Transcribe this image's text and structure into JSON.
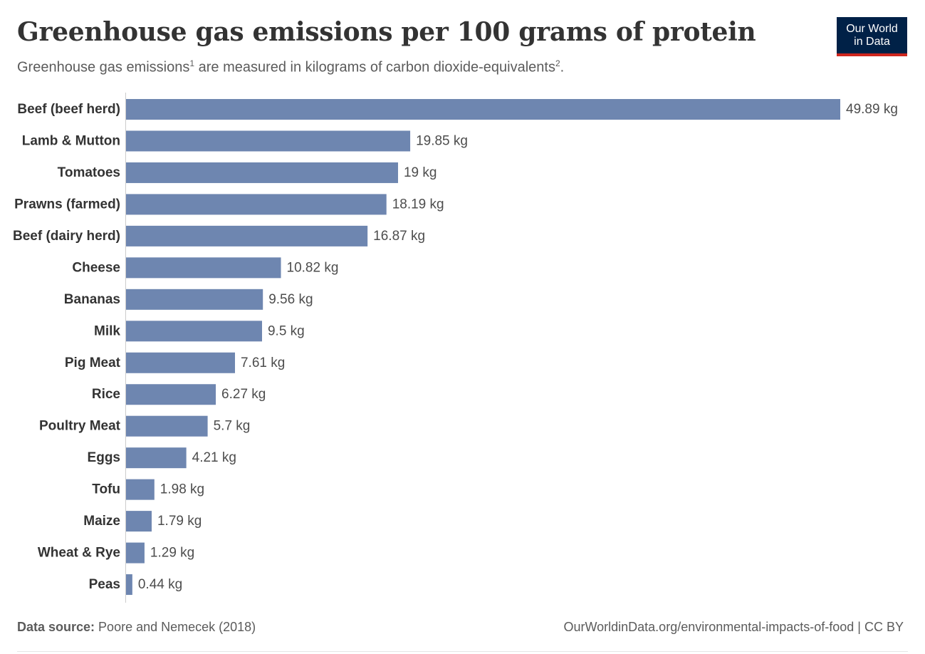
{
  "header": {
    "title": "Greenhouse gas emissions per 100 grams of protein",
    "subtitle_part1": "Greenhouse gas emissions",
    "subtitle_sup1": "1",
    "subtitle_part2": " are measured in kilograms of carbon dioxide-equivalents",
    "subtitle_sup2": "2",
    "subtitle_part3": "."
  },
  "logo": {
    "line1": "Our World",
    "line2": "in Data"
  },
  "footer": {
    "source_label": "Data source:",
    "source_text": " Poore and Nemecek (2018)",
    "url_license": "OurWorldinData.org/environmental-impacts-of-food | CC BY"
  },
  "colors": {
    "bar": "#6e86b0",
    "axis": "#cccccc",
    "label": "#333333",
    "value": "#4d4d4d",
    "logo_bg": "#002147",
    "logo_accent": "#ce261e"
  },
  "chart_data": {
    "type": "bar",
    "orientation": "horizontal",
    "unit_suffix": " kg",
    "categories": [
      "Beef (beef herd)",
      "Lamb & Mutton",
      "Tomatoes",
      "Prawns (farmed)",
      "Beef (dairy herd)",
      "Cheese",
      "Bananas",
      "Milk",
      "Pig Meat",
      "Rice",
      "Poultry Meat",
      "Eggs",
      "Tofu",
      "Maize",
      "Wheat & Rye",
      "Peas"
    ],
    "values": [
      49.89,
      19.85,
      19,
      18.19,
      16.87,
      10.82,
      9.56,
      9.5,
      7.61,
      6.27,
      5.7,
      4.21,
      1.98,
      1.79,
      1.29,
      0.44
    ],
    "value_labels": [
      "49.89 kg",
      "19.85 kg",
      "19 kg",
      "18.19 kg",
      "16.87 kg",
      "10.82 kg",
      "9.56 kg",
      "9.5 kg",
      "7.61 kg",
      "6.27 kg",
      "5.7 kg",
      "4.21 kg",
      "1.98 kg",
      "1.79 kg",
      "1.29 kg",
      "0.44 kg"
    ],
    "xlim": [
      0,
      49.89
    ],
    "grid": false
  }
}
